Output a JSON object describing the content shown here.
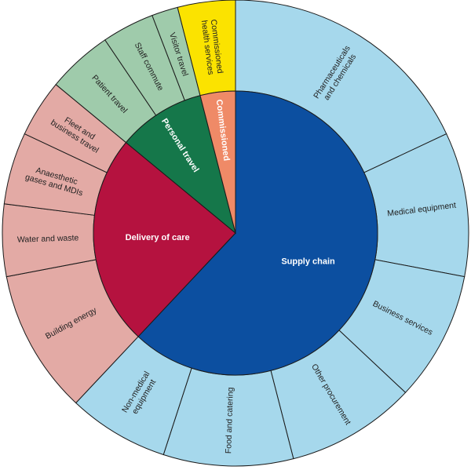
{
  "chart_data": {
    "type": "sunburst",
    "inner": [
      {
        "name": "Supply chain",
        "value": 62,
        "color": "#0c4fa0",
        "label_color": "#ffffff"
      },
      {
        "name": "Delivery of care",
        "value": 24,
        "color": "#b5123f",
        "label_color": "#ffffff"
      },
      {
        "name": "Personal travel",
        "value": 10,
        "color": "#15774a",
        "label_color": "#ffffff"
      },
      {
        "name": "Commissioned",
        "value": 4,
        "color": "#ef8a67",
        "label_color": "#ffffff"
      }
    ],
    "outer": [
      {
        "name": "Pharmaceuticals and chemicals",
        "lines": [
          "Pharmaceuticals",
          "and chemicals"
        ],
        "parent": "Supply chain",
        "value": 18,
        "color": "#a6d8ec"
      },
      {
        "name": "Medical equipment",
        "lines": [
          "Medical equipment"
        ],
        "parent": "Supply chain",
        "value": 10,
        "color": "#a6d8ec"
      },
      {
        "name": "Business services",
        "lines": [
          "Business services"
        ],
        "parent": "Supply chain",
        "value": 9,
        "color": "#a6d8ec"
      },
      {
        "name": "Other procurement",
        "lines": [
          "Other procurement"
        ],
        "parent": "Supply chain",
        "value": 9,
        "color": "#a6d8ec"
      },
      {
        "name": "Food and catering",
        "lines": [
          "Food and catering"
        ],
        "parent": "Supply chain",
        "value": 9,
        "color": "#a6d8ec"
      },
      {
        "name": "Non-medical equipment",
        "lines": [
          "Non-medical",
          "equipment"
        ],
        "parent": "Supply chain",
        "value": 7,
        "color": "#a6d8ec"
      },
      {
        "name": "Building energy",
        "lines": [
          "Building energy"
        ],
        "parent": "Delivery of care",
        "value": 10,
        "color": "#e3aaa5"
      },
      {
        "name": "Water and waste",
        "lines": [
          "Water and waste"
        ],
        "parent": "Delivery of care",
        "value": 5,
        "color": "#e3aaa5"
      },
      {
        "name": "Anaesthetic gases and MDIs",
        "lines": [
          "Anaesthetic",
          "gases and MDIs"
        ],
        "parent": "Delivery of care",
        "value": 5,
        "color": "#e3aaa5"
      },
      {
        "name": "Fleet and business travel",
        "lines": [
          "Fleet and",
          "business travel"
        ],
        "parent": "Delivery of care",
        "value": 4,
        "color": "#e3aaa5"
      },
      {
        "name": "Patient travel",
        "lines": [
          "Patient travel"
        ],
        "parent": "Personal travel",
        "value": 5,
        "color": "#9fcbab"
      },
      {
        "name": "Staff commute",
        "lines": [
          "Staff commute"
        ],
        "parent": "Personal travel",
        "value": 4,
        "color": "#9fcbab"
      },
      {
        "name": "Visitor travel",
        "lines": [
          "Visitor travel"
        ],
        "parent": "Personal travel",
        "value": 2,
        "color": "#9fcbab"
      },
      {
        "name": "Commissioned health services",
        "lines": [
          "Commissioned",
          "health services"
        ],
        "parent": "Commissioned",
        "value": 4,
        "color": "#fbe300"
      }
    ]
  }
}
